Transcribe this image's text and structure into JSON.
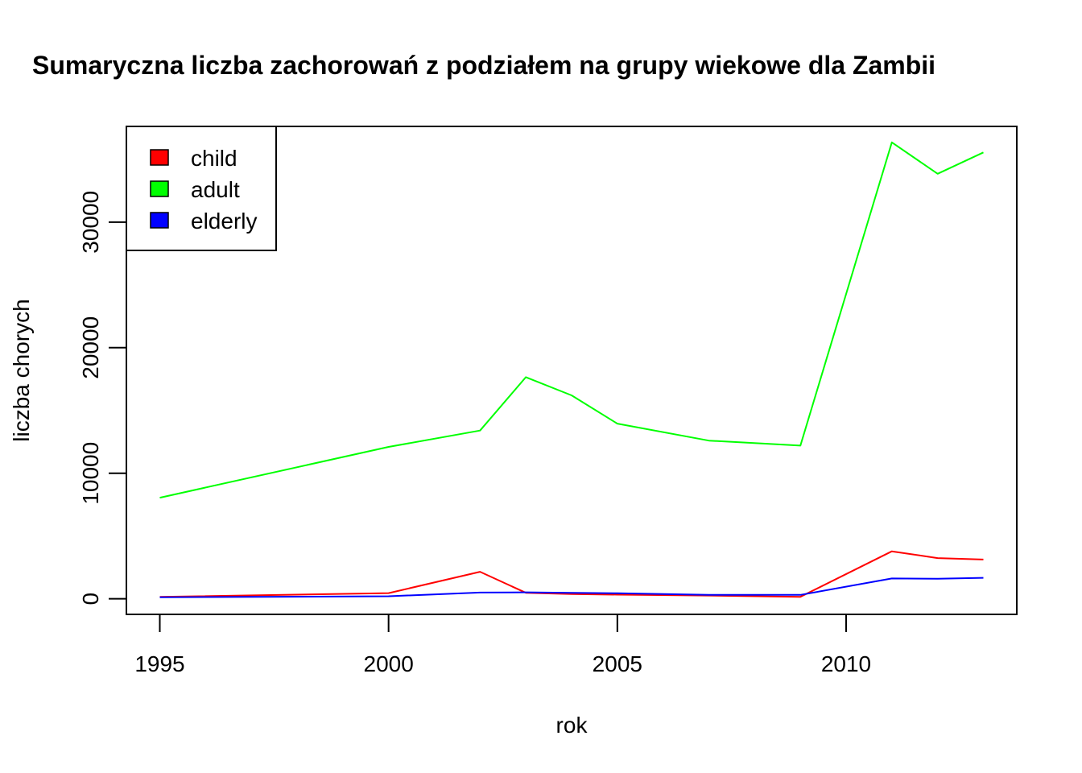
{
  "chart_data": {
    "type": "line",
    "title": "Sumaryczna liczba zachorowań z podziałem na grupy wiekowe dla Zambii",
    "xlabel": "rok",
    "ylabel": "liczba chorych",
    "xlim": [
      1994.27,
      2013.73
    ],
    "ylim": [
      -1240,
      37620
    ],
    "x_ticks": [
      1995,
      2000,
      2005,
      2010
    ],
    "y_ticks": [
      0,
      10000,
      20000,
      30000
    ],
    "grid": false,
    "legend_position": "top-left",
    "x": [
      1995,
      2000,
      2002,
      2003,
      2004,
      2005,
      2007,
      2009,
      2011,
      2012,
      2013
    ],
    "series": [
      {
        "name": "child",
        "color": "#FF0000",
        "values": [
          150,
          450,
          2150,
          480,
          380,
          330,
          260,
          160,
          3780,
          3240,
          3130
        ]
      },
      {
        "name": "adult",
        "color": "#00FF00",
        "values": [
          8050,
          12100,
          13400,
          17650,
          16200,
          13950,
          12600,
          12200,
          36350,
          33850,
          35550
        ]
      },
      {
        "name": "elderly",
        "color": "#0000FF",
        "values": [
          120,
          200,
          500,
          520,
          480,
          440,
          310,
          310,
          1620,
          1600,
          1670
        ]
      }
    ]
  }
}
